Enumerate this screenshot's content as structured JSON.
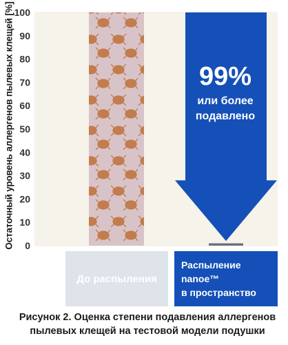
{
  "chart_data": {
    "type": "bar",
    "categories": [
      "До распыления",
      "Распыление nanoe™ в пространство"
    ],
    "category_lines": [
      [
        "До распыления"
      ],
      [
        "Распыление nanoe™",
        "в пространство"
      ]
    ],
    "values": [
      100,
      1
    ],
    "ylabel": "Остаточный уровень аллергенов пылевых клещей [%]",
    "ylim": [
      0,
      100
    ],
    "yticks": [
      0,
      10,
      20,
      30,
      40,
      50,
      60,
      70,
      80,
      90,
      100
    ],
    "grid": false,
    "annotation": {
      "value": "99%",
      "lines": [
        "или более",
        "подавлено"
      ]
    },
    "colors": {
      "bar_before": "#c8855a",
      "bar_before_bg": "#d9c5c8",
      "arrow": "#1550b8",
      "bar_after": "#6a7080",
      "category_before_bg": "#dfe3ea",
      "category_after_bg": "#1550b8"
    }
  },
  "caption_lines": [
    "Рисунок 2. Оценка степени подавления аллергенов",
    "пылевых клещей на тестовой модели подушки"
  ]
}
